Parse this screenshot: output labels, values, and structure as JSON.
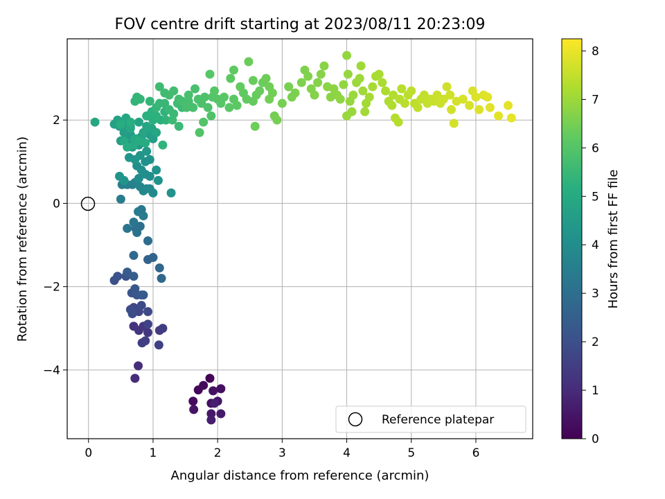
{
  "chart_data": {
    "type": "scatter",
    "title": "FOV centre drift starting at 2023/08/11 20:23:09",
    "xlabel": "Angular distance from reference (arcmin)",
    "ylabel": "Rotation from reference (arcmin)",
    "xlim": [
      -0.33,
      6.88
    ],
    "ylim": [
      -5.65,
      3.95
    ],
    "xticks": [
      0,
      1,
      2,
      3,
      4,
      5,
      6
    ],
    "yticks": [
      -4,
      -2,
      0,
      2
    ],
    "xtick_labels": [
      "0",
      "1",
      "2",
      "3",
      "4",
      "5",
      "6"
    ],
    "ytick_labels": [
      "−4",
      "−2",
      "0",
      "2"
    ],
    "grid": true,
    "colormap": "viridis",
    "colorbar": {
      "label": "Hours from first FF file",
      "range": [
        0,
        8.25
      ],
      "ticks": [
        0,
        1,
        2,
        3,
        4,
        5,
        6,
        7,
        8
      ],
      "tick_labels": [
        "0",
        "1",
        "2",
        "3",
        "4",
        "5",
        "6",
        "7",
        "8"
      ]
    },
    "legend": {
      "placement": "lower-right",
      "entries": [
        "Reference platepar"
      ]
    },
    "reference_point": {
      "x": 0,
      "y": 0,
      "label": "Reference platepar"
    },
    "points": [
      [
        1.88,
        -4.2,
        0.1
      ],
      [
        1.7,
        -4.48,
        0.15
      ],
      [
        1.78,
        -4.37,
        0.2
      ],
      [
        1.62,
        -4.75,
        0.25
      ],
      [
        1.9,
        -4.8,
        0.3
      ],
      [
        2.05,
        -4.45,
        0.35
      ],
      [
        1.93,
        -4.5,
        0.4
      ],
      [
        1.63,
        -4.95,
        0.45
      ],
      [
        2.0,
        -4.75,
        0.5
      ],
      [
        1.9,
        -5.05,
        0.55
      ],
      [
        2.05,
        -5.05,
        0.6
      ],
      [
        1.9,
        -5.2,
        0.65
      ],
      [
        1.95,
        -4.8,
        0.7
      ],
      [
        0.72,
        -4.2,
        1.0
      ],
      [
        0.77,
        -3.9,
        1.05
      ],
      [
        0.7,
        -2.95,
        1.2
      ],
      [
        0.78,
        -3.05,
        1.25
      ],
      [
        0.85,
        -2.95,
        1.3
      ],
      [
        0.92,
        -3.1,
        1.35
      ],
      [
        1.1,
        -3.05,
        1.4
      ],
      [
        1.15,
        -3.0,
        1.45
      ],
      [
        0.83,
        -3.35,
        1.5
      ],
      [
        0.88,
        -3.3,
        1.55
      ],
      [
        1.09,
        -3.4,
        1.6
      ],
      [
        0.92,
        -2.9,
        1.65
      ],
      [
        0.7,
        -2.5,
        1.7
      ],
      [
        0.78,
        -2.6,
        1.75
      ],
      [
        0.92,
        -2.6,
        1.8
      ],
      [
        0.82,
        -2.45,
        1.85
      ],
      [
        0.65,
        -2.55,
        1.9
      ],
      [
        0.68,
        -2.65,
        1.95
      ],
      [
        0.4,
        -1.85,
        2.0
      ],
      [
        0.45,
        -1.75,
        2.05
      ],
      [
        0.58,
        -1.75,
        2.1
      ],
      [
        0.67,
        -2.15,
        2.15
      ],
      [
        0.72,
        -2.05,
        2.2
      ],
      [
        0.75,
        -2.2,
        2.25
      ],
      [
        0.82,
        -2.2,
        2.3
      ],
      [
        0.85,
        -2.2,
        2.35
      ],
      [
        0.6,
        -1.65,
        2.4
      ],
      [
        0.7,
        -1.75,
        2.45
      ],
      [
        0.92,
        -1.35,
        2.6
      ],
      [
        1.0,
        -1.3,
        2.65
      ],
      [
        1.1,
        -1.55,
        2.7
      ],
      [
        1.13,
        -1.8,
        2.75
      ],
      [
        0.7,
        -1.25,
        2.8
      ],
      [
        0.92,
        -0.9,
        2.9
      ],
      [
        0.8,
        -0.55,
        3.0
      ],
      [
        0.73,
        -0.6,
        3.05
      ],
      [
        0.75,
        -0.7,
        3.1
      ],
      [
        0.6,
        -0.6,
        3.15
      ],
      [
        0.7,
        -0.45,
        3.2
      ],
      [
        0.82,
        -0.15,
        3.3
      ],
      [
        0.77,
        -0.2,
        3.35
      ],
      [
        0.85,
        -0.3,
        3.4
      ],
      [
        0.5,
        0.1,
        3.45
      ],
      [
        0.52,
        0.45,
        3.5
      ],
      [
        0.6,
        0.45,
        3.55
      ],
      [
        0.68,
        0.45,
        3.6
      ],
      [
        0.72,
        0.5,
        3.65
      ],
      [
        0.8,
        0.4,
        3.7
      ],
      [
        0.9,
        0.35,
        3.75
      ],
      [
        0.85,
        0.3,
        3.8
      ],
      [
        0.95,
        0.35,
        3.85
      ],
      [
        1.0,
        0.25,
        3.9
      ],
      [
        0.78,
        0.6,
        3.95
      ],
      [
        0.88,
        0.7,
        4.0
      ],
      [
        0.95,
        0.65,
        4.02
      ],
      [
        0.82,
        0.8,
        4.05
      ],
      [
        0.75,
        0.9,
        4.08
      ],
      [
        0.88,
        1.0,
        4.1
      ],
      [
        0.95,
        1.05,
        4.12
      ],
      [
        1.05,
        0.8,
        4.15
      ],
      [
        1.08,
        0.55,
        4.18
      ],
      [
        1.28,
        0.25,
        4.2
      ],
      [
        0.48,
        0.65,
        4.22
      ],
      [
        0.55,
        0.55,
        4.25
      ],
      [
        0.63,
        1.1,
        4.28
      ],
      [
        0.72,
        1.05,
        4.3
      ],
      [
        0.8,
        1.15,
        4.32
      ],
      [
        0.9,
        1.25,
        4.35
      ],
      [
        0.68,
        1.35,
        4.38
      ],
      [
        0.78,
        1.4,
        4.4
      ],
      [
        0.68,
        1.45,
        4.42
      ],
      [
        0.58,
        1.6,
        4.45
      ],
      [
        0.65,
        1.65,
        4.48
      ],
      [
        0.75,
        1.55,
        4.5
      ],
      [
        0.82,
        1.6,
        4.52
      ],
      [
        0.95,
        1.65,
        4.55
      ],
      [
        1.0,
        1.55,
        4.58
      ],
      [
        0.5,
        1.5,
        4.6
      ],
      [
        0.55,
        1.7,
        4.62
      ],
      [
        0.48,
        1.85,
        4.65
      ],
      [
        0.4,
        1.9,
        4.68
      ],
      [
        0.45,
        2.0,
        4.7
      ],
      [
        0.58,
        1.9,
        4.72
      ],
      [
        0.65,
        1.85,
        4.75
      ],
      [
        0.78,
        1.95,
        4.78
      ],
      [
        0.85,
        1.7,
        4.8
      ],
      [
        0.9,
        1.85,
        4.82
      ],
      [
        0.98,
        1.8,
        4.85
      ],
      [
        1.05,
        1.7,
        4.88
      ],
      [
        0.1,
        1.95,
        4.9
      ],
      [
        0.58,
        2.05,
        4.92
      ],
      [
        0.65,
        1.8,
        4.95
      ],
      [
        0.55,
        1.5,
        4.97
      ],
      [
        0.7,
        1.4,
        5.0
      ],
      [
        0.72,
        1.55,
        5.02
      ],
      [
        0.8,
        1.5,
        5.05
      ],
      [
        0.88,
        1.45,
        5.07
      ],
      [
        0.6,
        1.35,
        5.1
      ],
      [
        0.5,
        1.9,
        5.12
      ],
      [
        0.65,
        1.95,
        5.15
      ],
      [
        1.0,
        2.0,
        5.18
      ],
      [
        1.12,
        2.0,
        5.2
      ],
      [
        0.9,
        2.1,
        5.22
      ],
      [
        0.98,
        2.2,
        5.25
      ],
      [
        1.05,
        2.1,
        5.28
      ],
      [
        1.18,
        2.2,
        5.3
      ],
      [
        1.2,
        2.0,
        5.32
      ],
      [
        1.15,
        1.4,
        5.34
      ],
      [
        0.72,
        2.45,
        5.36
      ],
      [
        0.8,
        2.5,
        5.38
      ],
      [
        0.75,
        2.55,
        5.4
      ],
      [
        0.95,
        2.45,
        5.42
      ],
      [
        1.05,
        2.3,
        5.44
      ],
      [
        1.1,
        2.4,
        5.46
      ],
      [
        1.18,
        2.4,
        5.48
      ],
      [
        1.25,
        2.25,
        5.5
      ],
      [
        1.32,
        2.15,
        5.52
      ],
      [
        1.4,
        1.85,
        5.54
      ],
      [
        1.3,
        2.0,
        5.56
      ],
      [
        1.45,
        2.3,
        5.58
      ],
      [
        1.38,
        2.4,
        5.6
      ],
      [
        1.1,
        2.8,
        5.62
      ],
      [
        1.18,
        2.65,
        5.64
      ],
      [
        1.25,
        2.6,
        5.66
      ],
      [
        1.32,
        2.7,
        5.68
      ],
      [
        1.4,
        2.5,
        5.7
      ],
      [
        1.45,
        2.45,
        5.72
      ],
      [
        1.55,
        2.45,
        5.74
      ],
      [
        1.52,
        2.3,
        5.76
      ],
      [
        1.62,
        2.3,
        5.78
      ],
      [
        1.55,
        2.6,
        5.8
      ],
      [
        1.65,
        2.75,
        5.82
      ],
      [
        1.7,
        2.5,
        5.84
      ],
      [
        1.75,
        2.4,
        5.86
      ],
      [
        1.8,
        2.55,
        5.88
      ],
      [
        1.85,
        2.3,
        5.9
      ],
      [
        1.9,
        2.1,
        5.92
      ],
      [
        1.78,
        1.95,
        5.94
      ],
      [
        1.72,
        1.7,
        5.96
      ],
      [
        1.92,
        2.55,
        5.98
      ],
      [
        2.0,
        2.5,
        6.0
      ],
      [
        2.05,
        2.4,
        6.02
      ],
      [
        1.95,
        2.7,
        6.04
      ],
      [
        1.88,
        3.1,
        6.06
      ],
      [
        2.1,
        2.55,
        6.08
      ],
      [
        2.18,
        2.3,
        6.1
      ],
      [
        2.25,
        2.5,
        6.12
      ],
      [
        2.3,
        2.35,
        6.14
      ],
      [
        2.2,
        3.0,
        6.16
      ],
      [
        2.25,
        3.2,
        6.18
      ],
      [
        2.4,
        2.65,
        6.2
      ],
      [
        2.45,
        2.5,
        6.22
      ],
      [
        2.35,
        2.8,
        6.24
      ],
      [
        2.55,
        2.45,
        6.26
      ],
      [
        2.6,
        2.6,
        6.28
      ],
      [
        2.65,
        2.7,
        6.3
      ],
      [
        2.55,
        2.95,
        6.32
      ],
      [
        2.7,
        2.9,
        6.34
      ],
      [
        2.48,
        3.4,
        6.36
      ],
      [
        2.58,
        1.85,
        6.38
      ],
      [
        2.75,
        3.0,
        6.4
      ],
      [
        2.8,
        2.8,
        6.42
      ],
      [
        2.85,
        2.65,
        6.44
      ],
      [
        2.8,
        2.5,
        6.46
      ],
      [
        2.88,
        2.1,
        6.48
      ],
      [
        2.92,
        2.0,
        6.5
      ],
      [
        3.0,
        2.4,
        6.52
      ],
      [
        3.1,
        2.8,
        6.54
      ],
      [
        3.15,
        2.55,
        6.56
      ],
      [
        3.2,
        2.65,
        6.58
      ],
      [
        3.3,
        2.9,
        6.6
      ],
      [
        3.35,
        3.2,
        6.62
      ],
      [
        3.4,
        3.05,
        6.64
      ],
      [
        3.45,
        2.75,
        6.66
      ],
      [
        3.5,
        2.6,
        6.68
      ],
      [
        3.55,
        2.9,
        6.7
      ],
      [
        3.6,
        3.1,
        6.72
      ],
      [
        3.65,
        3.3,
        6.74
      ],
      [
        3.7,
        2.8,
        6.76
      ],
      [
        3.75,
        2.55,
        6.78
      ],
      [
        3.8,
        2.75,
        6.8
      ],
      [
        3.85,
        2.6,
        6.82
      ],
      [
        3.9,
        2.5,
        6.84
      ],
      [
        3.95,
        2.85,
        6.86
      ],
      [
        4.0,
        3.55,
        6.88
      ],
      [
        4.02,
        3.1,
        6.9
      ],
      [
        4.05,
        2.45,
        6.92
      ],
      [
        4.0,
        2.1,
        6.94
      ],
      [
        4.08,
        2.2,
        6.96
      ],
      [
        4.1,
        2.6,
        6.98
      ],
      [
        4.15,
        2.9,
        7.0
      ],
      [
        4.2,
        3.0,
        7.02
      ],
      [
        4.22,
        3.3,
        7.04
      ],
      [
        4.25,
        2.7,
        7.06
      ],
      [
        4.28,
        2.2,
        7.08
      ],
      [
        4.3,
        2.4,
        7.1
      ],
      [
        4.35,
        2.55,
        7.12
      ],
      [
        4.4,
        2.8,
        7.14
      ],
      [
        4.45,
        3.05,
        7.16
      ],
      [
        4.5,
        3.1,
        7.18
      ],
      [
        4.55,
        2.9,
        7.2
      ],
      [
        4.6,
        2.7,
        7.22
      ],
      [
        4.65,
        2.45,
        7.24
      ],
      [
        4.7,
        2.35,
        7.26
      ],
      [
        4.72,
        2.6,
        7.28
      ],
      [
        4.75,
        2.05,
        7.3
      ],
      [
        4.8,
        1.95,
        7.32
      ],
      [
        4.82,
        2.5,
        7.34
      ],
      [
        4.85,
        2.75,
        7.36
      ],
      [
        4.9,
        2.4,
        7.38
      ],
      [
        4.95,
        2.6,
        7.4
      ],
      [
        5.0,
        2.7,
        7.42
      ],
      [
        5.05,
        2.4,
        7.44
      ],
      [
        5.1,
        2.3,
        7.46
      ],
      [
        5.15,
        2.5,
        7.48
      ],
      [
        5.2,
        2.6,
        7.5
      ],
      [
        5.25,
        2.4,
        7.52
      ],
      [
        5.3,
        2.5,
        7.54
      ],
      [
        5.35,
        2.45,
        7.56
      ],
      [
        5.4,
        2.6,
        7.58
      ],
      [
        5.45,
        2.4,
        7.6
      ],
      [
        5.5,
        2.5,
        7.62
      ],
      [
        5.55,
        2.8,
        7.64
      ],
      [
        5.6,
        2.6,
        7.66
      ],
      [
        5.62,
        2.25,
        7.68
      ],
      [
        5.66,
        1.92,
        7.7
      ],
      [
        5.7,
        2.45,
        7.72
      ],
      [
        5.8,
        2.5,
        7.74
      ],
      [
        5.9,
        2.35,
        7.76
      ],
      [
        5.95,
        2.7,
        7.78
      ],
      [
        6.0,
        2.55,
        7.8
      ],
      [
        6.05,
        2.25,
        7.82
      ],
      [
        6.12,
        2.6,
        7.84
      ],
      [
        6.18,
        2.55,
        7.86
      ],
      [
        6.22,
        2.3,
        7.88
      ],
      [
        6.35,
        2.1,
        7.9
      ],
      [
        6.5,
        2.35,
        7.92
      ],
      [
        6.55,
        2.05,
        7.94
      ]
    ]
  }
}
